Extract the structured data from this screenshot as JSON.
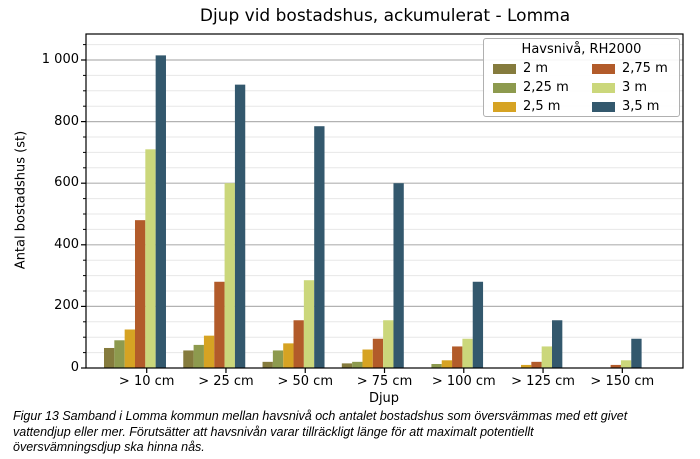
{
  "figure": {
    "caption_lines": [
      "Figur 13 Samband i Lomma kommun mellan havsnivå och antalet bostadshus som översvämmas med ett givet",
      "vattendjup eller mer. Förutsätter att havsnivån varar tillräckligt länge för att maximalt potentiellt",
      "översvämningsdjup ska hinna nås."
    ]
  },
  "chart_data": {
    "type": "bar",
    "title": "Djup vid bostadshus, ackumulerat - Lomma",
    "xlabel": "Djup",
    "ylabel": "Antal bostadshus (st)",
    "legend_title": "Havsnivå, RH2000",
    "legend_position": "upper right",
    "grid": true,
    "ylim": [
      0,
      1085
    ],
    "yticks": [
      {
        "value": 0,
        "label": "0"
      },
      {
        "value": 200,
        "label": "200"
      },
      {
        "value": 400,
        "label": "400"
      },
      {
        "value": 600,
        "label": "600"
      },
      {
        "value": 800,
        "label": "800"
      },
      {
        "value": 1000,
        "label": "1 000"
      }
    ],
    "minor_grid_step": 50,
    "categories": [
      "> 10 cm",
      "> 25 cm",
      "> 50 cm",
      "> 75 cm",
      "> 100 cm",
      "> 125 cm",
      "> 150 cm"
    ],
    "series": [
      {
        "name": "2 m",
        "color": "#857b3d",
        "values": [
          65,
          57,
          20,
          15,
          0,
          0,
          0
        ]
      },
      {
        "name": "2,25 m",
        "color": "#8d9a4e",
        "values": [
          90,
          75,
          57,
          20,
          13,
          0,
          0
        ]
      },
      {
        "name": "2,5 m",
        "color": "#d6a323",
        "values": [
          125,
          105,
          80,
          60,
          25,
          10,
          0
        ]
      },
      {
        "name": "2,75 m",
        "color": "#b25b2a",
        "values": [
          480,
          280,
          155,
          95,
          70,
          20,
          10
        ]
      },
      {
        "name": "3 m",
        "color": "#cbd77b",
        "values": [
          710,
          600,
          285,
          155,
          95,
          70,
          25
        ]
      },
      {
        "name": "3,5 m",
        "color": "#33586d",
        "values": [
          1015,
          920,
          785,
          600,
          280,
          155,
          95
        ]
      }
    ],
    "colors": {
      "minor_gridline": "#e7e7e7",
      "major_gridline": "#b2b2b2",
      "axis_frame": "#000000"
    }
  }
}
